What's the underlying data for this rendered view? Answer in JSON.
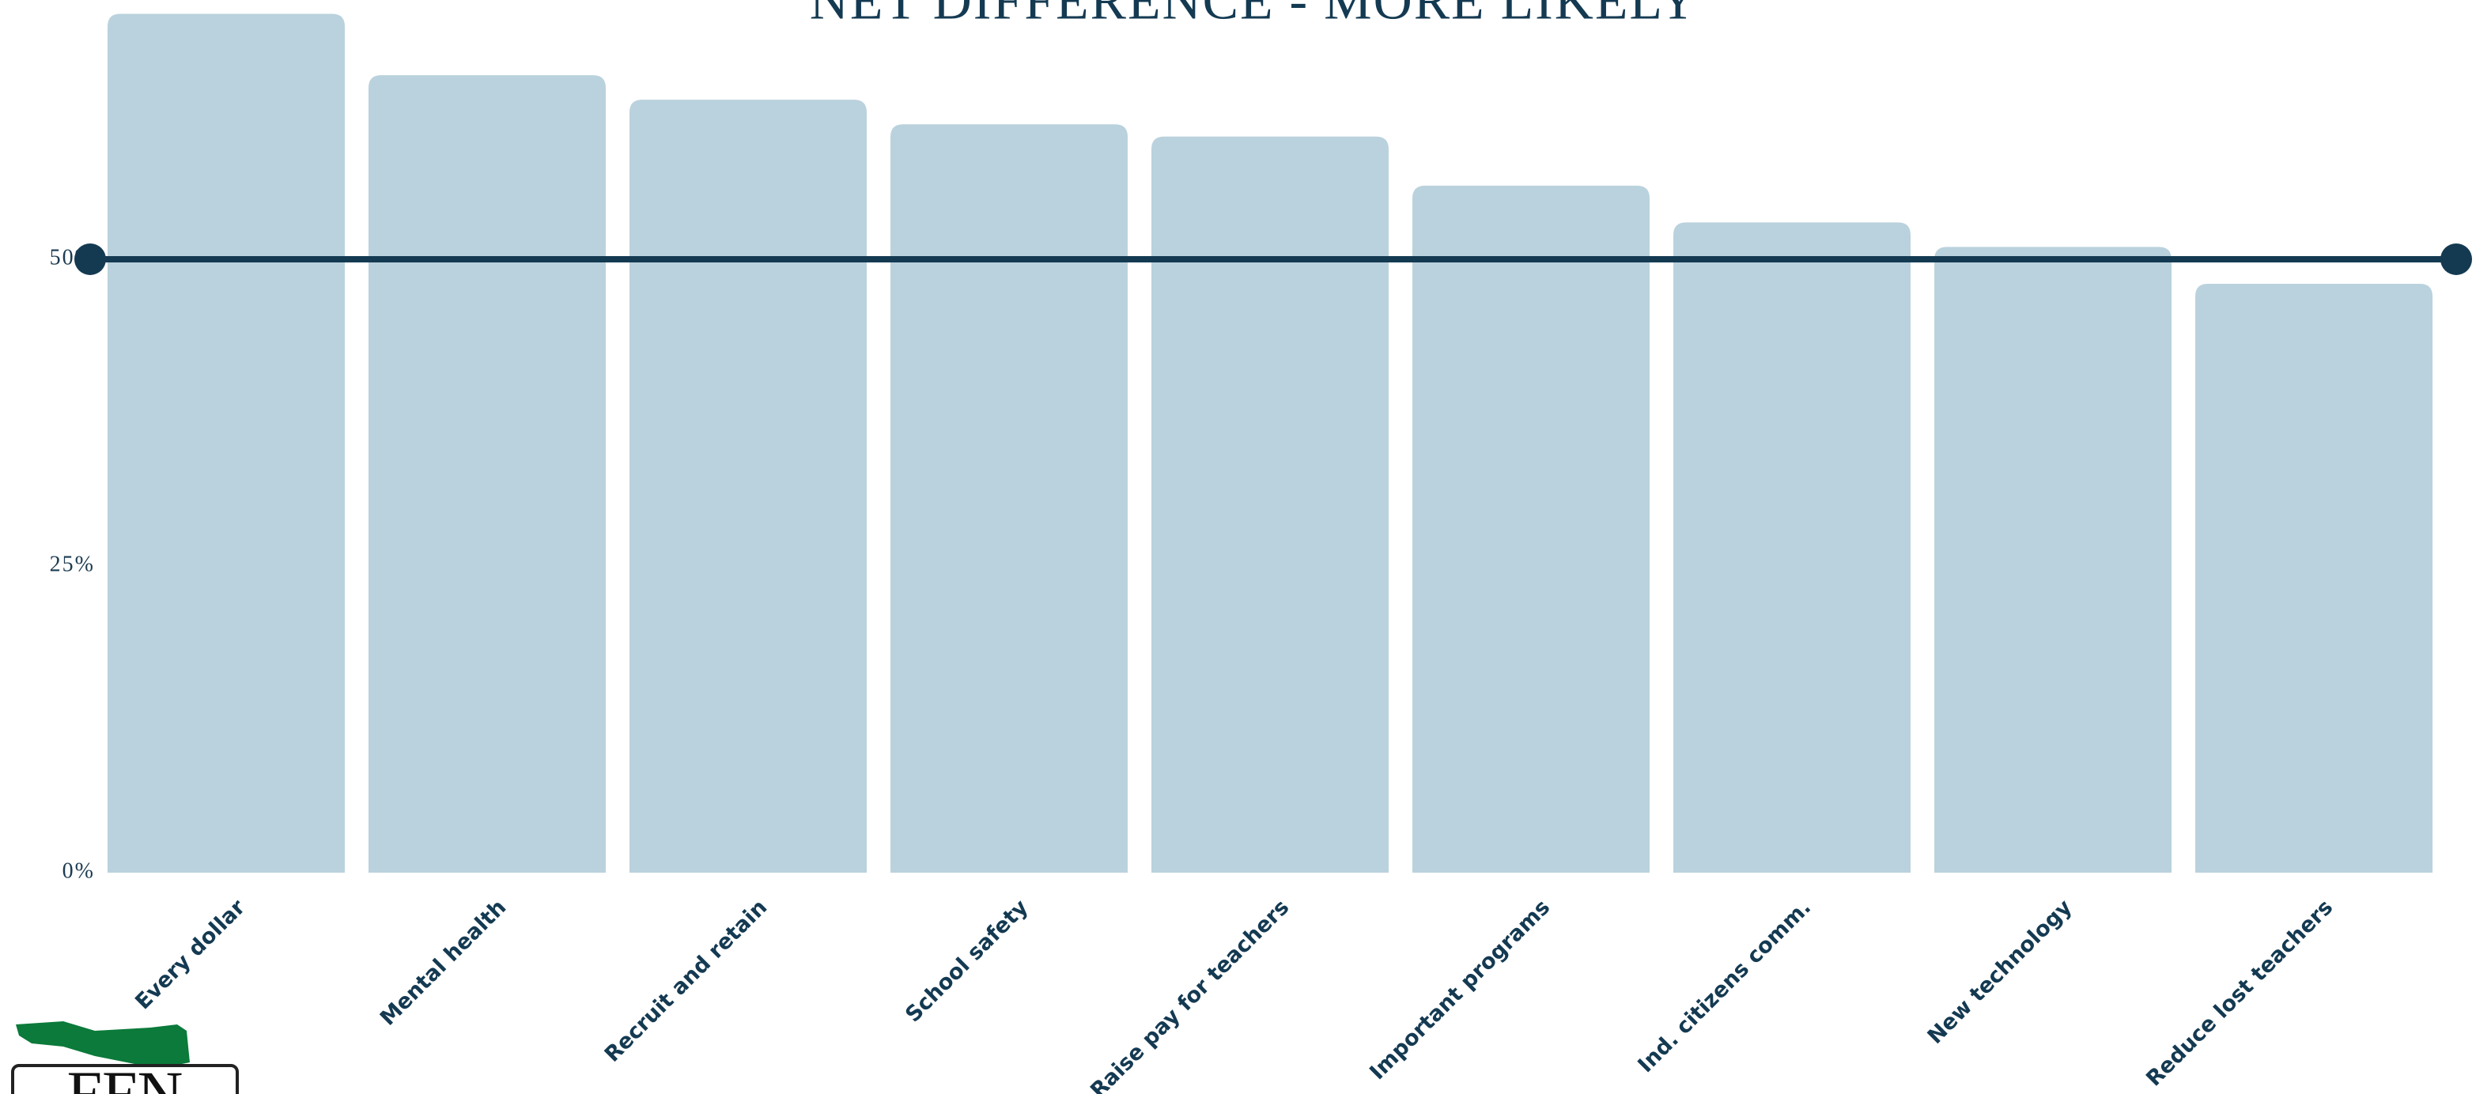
{
  "chart_data": {
    "type": "bar",
    "title": "NET DIFFERENCE - MORE LIKELY",
    "categories": [
      "Every dollar",
      "Mental health",
      "Recruit and retain",
      "School safety",
      "Raise pay for teachers",
      "Important programs",
      "Ind. citizens comm.",
      "New technology",
      "Reduce lost teachers"
    ],
    "values": [
      70,
      65,
      63,
      61,
      60,
      56,
      53,
      51,
      48
    ],
    "color": "#bad2dd",
    "ylim": [
      0,
      71
    ],
    "yticks": [
      {
        "value": 0,
        "label": "0%"
      },
      {
        "value": 25,
        "label": "25%"
      },
      {
        "value": 50,
        "label": "50%"
      }
    ],
    "reference_line": {
      "value": 50,
      "color": "#143a52"
    },
    "grid": false
  },
  "logo": "FFN"
}
